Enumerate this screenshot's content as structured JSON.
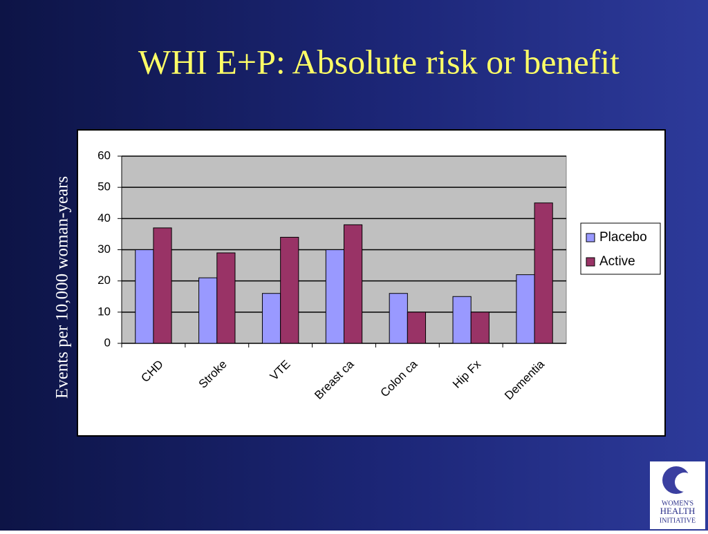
{
  "chart_data": {
    "type": "bar",
    "title": "WHI E+P: Absolute risk or benefit",
    "y_label": "Events per 10,000 woman-years",
    "categories": [
      "CHD",
      "Stroke",
      "VTE",
      "Breast ca",
      "Colon ca",
      "Hip Fx",
      "Dementia"
    ],
    "series": [
      {
        "name": "Placebo",
        "color": "#9999ff",
        "values": [
          30,
          21,
          16,
          30,
          16,
          15,
          22
        ]
      },
      {
        "name": "Active",
        "color": "#993366",
        "values": [
          37,
          29,
          34,
          38,
          10,
          10,
          45
        ]
      }
    ],
    "ylim": [
      0,
      60
    ],
    "yticks": [
      0,
      10,
      20,
      30,
      40,
      50,
      60
    ],
    "grid": true,
    "legend": "right"
  },
  "logo": {
    "lines": [
      "WOMEN'S",
      "HEALTH",
      "INITIATIVE"
    ]
  }
}
